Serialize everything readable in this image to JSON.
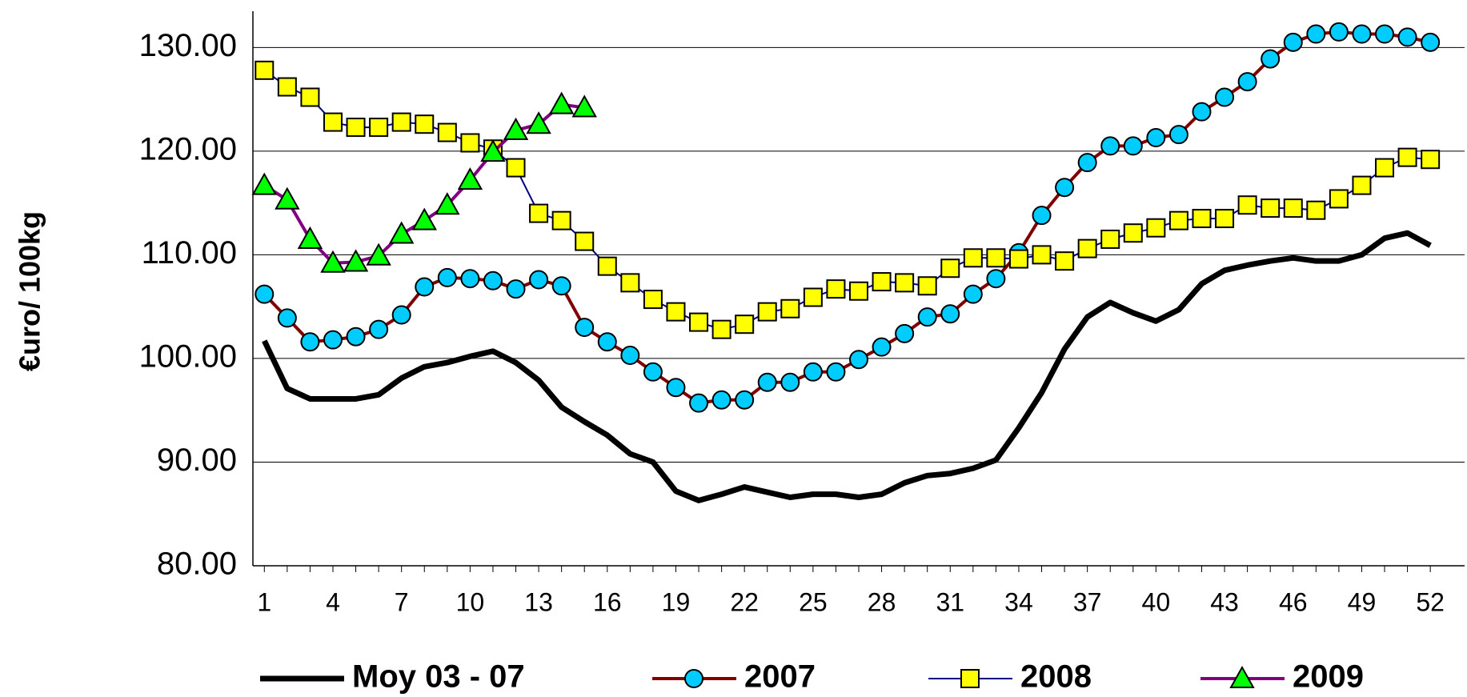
{
  "chart_data": {
    "type": "line",
    "y_label": "€uro/ 100kg",
    "x": [
      1,
      2,
      3,
      4,
      5,
      6,
      7,
      8,
      9,
      10,
      11,
      12,
      13,
      14,
      15,
      16,
      17,
      18,
      19,
      20,
      21,
      22,
      23,
      24,
      25,
      26,
      27,
      28,
      29,
      30,
      31,
      32,
      33,
      34,
      35,
      36,
      37,
      38,
      39,
      40,
      41,
      42,
      43,
      44,
      45,
      46,
      47,
      48,
      49,
      50,
      51,
      52
    ],
    "xlim": [
      0.5,
      53.5
    ],
    "xticks": [
      1,
      4,
      7,
      10,
      13,
      16,
      19,
      22,
      25,
      28,
      31,
      34,
      37,
      40,
      43,
      46,
      49,
      52
    ],
    "ylim": [
      80,
      133.5
    ],
    "yticks": [
      {
        "value": 80,
        "label": "80.00"
      },
      {
        "value": 90,
        "label": "90.00"
      },
      {
        "value": 100,
        "label": "100.00"
      },
      {
        "value": 110,
        "label": "110.00"
      },
      {
        "value": 120,
        "label": "120.00"
      },
      {
        "value": 130,
        "label": "130.00"
      }
    ],
    "grid": true,
    "legend": "bottom",
    "series": [
      {
        "name": "Moy 03 - 07",
        "color": "#000000",
        "marker": "none",
        "values": [
          101.7,
          97.1,
          96.1,
          96.1,
          96.1,
          96.5,
          98.1,
          99.2,
          99.6,
          100.2,
          100.7,
          99.6,
          97.9,
          95.3,
          93.9,
          92.6,
          90.8,
          90.0,
          87.2,
          86.3,
          86.9,
          87.6,
          87.1,
          86.6,
          86.9,
          86.9,
          86.6,
          86.9,
          88.0,
          88.7,
          88.9,
          89.4,
          90.2,
          93.3,
          96.7,
          100.9,
          104.0,
          105.4,
          104.4,
          103.6,
          104.7,
          107.2,
          108.5,
          109.0,
          109.4,
          109.7,
          109.4,
          109.4,
          110.0,
          111.6,
          112.1,
          110.9
        ]
      },
      {
        "name": "2007",
        "color": "#800000",
        "marker": "circle",
        "marker_color": "#00ccff",
        "values": [
          106.2,
          103.9,
          101.6,
          101.8,
          102.1,
          102.8,
          104.2,
          106.9,
          107.8,
          107.7,
          107.5,
          106.7,
          107.6,
          107.0,
          103.0,
          101.6,
          100.3,
          98.7,
          97.2,
          95.7,
          96.0,
          96.0,
          97.7,
          97.7,
          98.7,
          98.7,
          99.9,
          101.1,
          102.4,
          104.0,
          104.3,
          106.2,
          107.7,
          110.2,
          113.8,
          116.5,
          118.9,
          120.5,
          120.5,
          121.3,
          121.6,
          123.8,
          125.2,
          126.7,
          128.9,
          130.5,
          131.3,
          131.5,
          131.3,
          131.3,
          131.0,
          130.5
        ]
      },
      {
        "name": "2008",
        "color": "#000080",
        "marker": "square",
        "marker_color": "#ffff00",
        "values": [
          127.8,
          126.2,
          125.2,
          122.8,
          122.3,
          122.3,
          122.8,
          122.6,
          121.8,
          120.8,
          120.2,
          118.4,
          114.0,
          113.3,
          111.3,
          108.9,
          107.3,
          105.7,
          104.5,
          103.5,
          102.8,
          103.3,
          104.5,
          104.8,
          105.9,
          106.7,
          106.5,
          107.4,
          107.3,
          107.0,
          108.7,
          109.7,
          109.7,
          109.6,
          110.0,
          109.4,
          110.6,
          111.5,
          112.1,
          112.6,
          113.3,
          113.5,
          113.5,
          114.8,
          114.5,
          114.5,
          114.3,
          115.4,
          116.7,
          118.4,
          119.4,
          119.2
        ]
      },
      {
        "name": "2009",
        "color": "#800080",
        "marker": "triangle",
        "marker_color": "#00ff00",
        "values": [
          116.7,
          115.3,
          111.5,
          109.2,
          109.3,
          109.9,
          112.0,
          113.3,
          114.8,
          117.2,
          119.9,
          122.0,
          122.6,
          124.5,
          124.2,
          null,
          null,
          null,
          null,
          null,
          null,
          null,
          null,
          null,
          null,
          null,
          null,
          null,
          null,
          null,
          null,
          null,
          null,
          null,
          null,
          null,
          null,
          null,
          null,
          null,
          null,
          null,
          null,
          null,
          null,
          null,
          null,
          null,
          null,
          null,
          null,
          null
        ]
      }
    ]
  }
}
